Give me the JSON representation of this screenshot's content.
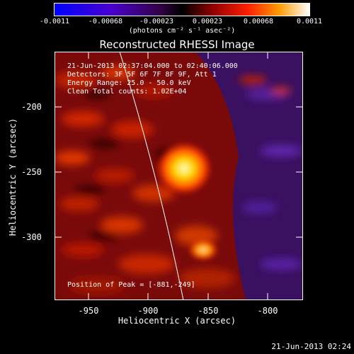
{
  "colorbar": {
    "ticks": [
      "-0.0011",
      "-0.00068",
      "-0.00023",
      "0.00023",
      "0.00068",
      "0.0011"
    ],
    "units": "(photons cm⁻² s⁻¹ asec⁻²)"
  },
  "title": "Reconstructed RHESSI Image",
  "annotations": {
    "time_range": "21-Jun-2013 02:37:04.000 to 02:40:06.000",
    "detectors": "Detectors: 3F 5F 6F 7F 8F 9F, Att 1",
    "energy": "Energy Range: 25.0 - 50.0 keV",
    "clean": "Clean     Total counts: 1.02E+04",
    "peak": "Position of Peak = [-881,-249]"
  },
  "axes": {
    "xlabel": "Heliocentric X (arcsec)",
    "ylabel": "Heliocentric Y (arcsec)",
    "xticks": [
      "-950",
      "-900",
      "-850",
      "-800"
    ],
    "yticks": [
      "-200",
      "-250",
      "-300"
    ]
  },
  "timestamp": "21-Jun-2013 02:24"
}
